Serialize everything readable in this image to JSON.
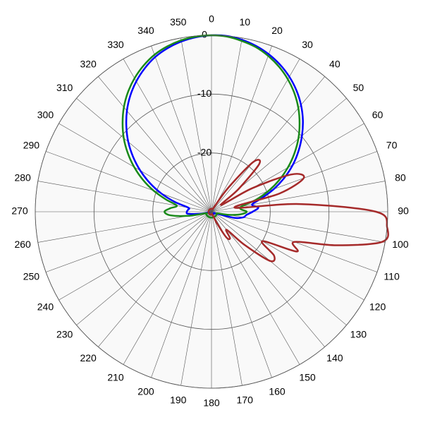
{
  "chart_data": {
    "type": "polar",
    "x": [
      0,
      5,
      10,
      15,
      20,
      25,
      30,
      35,
      40,
      45,
      50,
      55,
      60,
      65,
      70,
      75,
      80,
      85,
      90,
      95,
      100,
      105,
      110,
      115,
      120,
      125,
      130,
      135,
      140,
      145,
      150,
      155,
      160,
      165,
      170,
      175,
      180,
      185,
      190,
      195,
      200,
      205,
      210,
      215,
      220,
      225,
      230,
      235,
      240,
      245,
      250,
      255,
      260,
      265,
      270,
      275,
      280,
      285,
      290,
      295,
      300,
      305,
      310,
      315,
      320,
      325,
      330,
      335,
      340,
      345,
      350,
      355
    ],
    "xticks": [
      0,
      10,
      20,
      30,
      40,
      50,
      60,
      70,
      80,
      90,
      100,
      110,
      120,
      130,
      140,
      150,
      160,
      170,
      180,
      190,
      200,
      210,
      220,
      230,
      240,
      250,
      260,
      270,
      280,
      290,
      300,
      310,
      320,
      330,
      340,
      350
    ],
    "ylim": [
      -30,
      0
    ],
    "yticks": [
      -20,
      -10,
      0
    ],
    "grid": true,
    "series": [
      {
        "color": "#0000ff",
        "values": [
          0,
          0,
          -0.3,
          -0.8,
          -1.5,
          -2.4,
          -3.5,
          -4.8,
          -6.3,
          -8,
          -9.9,
          -11.9,
          -14,
          -16.3,
          -18.7,
          -21.2,
          -23,
          -22,
          -23,
          -24,
          -24.5,
          -26,
          -29,
          -29.5,
          -29.5,
          -29.5,
          -29.5,
          -29.5,
          -29.5,
          -29.5,
          -29.5,
          -29.5,
          -29.5,
          -29.5,
          -29.5,
          -29.5,
          -29.5,
          -29.5,
          -29.5,
          -29.5,
          -29.5,
          -29.5,
          -29.5,
          -29.5,
          -29.5,
          -29.5,
          -29.5,
          -29.5,
          -29.5,
          -29.5,
          -29.5,
          -29.5,
          -28,
          -26,
          -25.8,
          -26,
          -26,
          -23.5,
          -20.9,
          -18.4,
          -16,
          -13.7,
          -11.5,
          -9.5,
          -7.6,
          -5.9,
          -4.4,
          -3.1,
          -2,
          -1.2,
          -0.6,
          -0.2
        ]
      },
      {
        "color": "#1a8a1a",
        "values": [
          0,
          -0.1,
          -0.5,
          -1,
          -1.8,
          -2.8,
          -4,
          -5.4,
          -7,
          -8.8,
          -10.7,
          -12.8,
          -15,
          -17.3,
          -19.7,
          -22.2,
          -24.8,
          -25,
          -24,
          -25,
          -27,
          -29,
          -29,
          -29,
          -29,
          -29,
          -29,
          -29,
          -29,
          -29,
          -29,
          -29,
          -29,
          -29,
          -29,
          -29,
          -29,
          -29,
          -29,
          -29,
          -29,
          -29,
          -29,
          -29,
          -29,
          -29,
          -29,
          -29,
          -29,
          -29,
          -29,
          -29,
          -26,
          -23,
          -22,
          -23,
          -24,
          -22,
          -19.5,
          -17.1,
          -14.8,
          -12.6,
          -10.5,
          -8.6,
          -6.8,
          -5.2,
          -3.8,
          -2.6,
          -1.6,
          -0.9,
          -0.4,
          -0.1
        ]
      },
      {
        "color": "#a52a2a",
        "values": [
          -29.5,
          -29.5,
          -29.5,
          -29.5,
          -29.5,
          -29.5,
          -29,
          -25,
          -19,
          -18.5,
          -24,
          -28,
          -22,
          -15,
          -13.3,
          -18,
          -26,
          -15,
          -2,
          0,
          -0.5,
          -8,
          -15,
          -14,
          -20,
          -17,
          -17,
          -22,
          -26,
          -24.5,
          -25,
          -28,
          -29.5,
          -29.5,
          -29.5,
          -29.5,
          -29.5,
          -29.5,
          -29.5,
          -29.5,
          -29.5,
          -29.5,
          -29.5,
          -29.5,
          -29.5,
          -29.5,
          -29.5,
          -29.5,
          -29.5,
          -29.5,
          -29.5,
          -29.5,
          -29.5,
          -29.5,
          -29.5,
          -29.5,
          -29.5,
          -29.5,
          -29.5,
          -29.5,
          -29.5,
          -29.5,
          -29.5,
          -29.5,
          -29.5,
          -29.5,
          -29.5,
          -29.5,
          -29.5,
          -29.5,
          -29.5,
          -29.5
        ]
      }
    ]
  }
}
